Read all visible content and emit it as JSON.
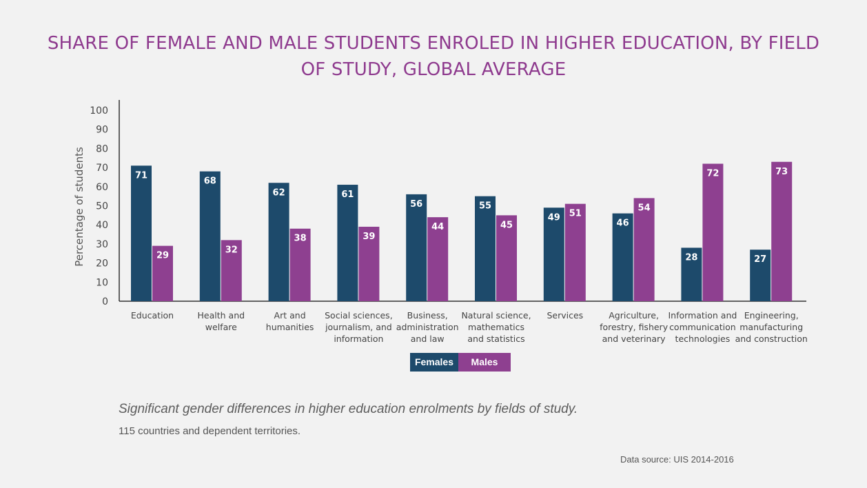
{
  "title": "SHARE OF FEMALE AND MALE STUDENTS ENROLED IN HIGHER EDUCATION, BY FIELD OF STUDY, GLOBAL AVERAGE",
  "caption": {
    "main": "Significant gender differences in higher education enrolments by fields of study.",
    "sub": "115 countries and dependent territories.",
    "source": "Data source: UIS 2014-2016"
  },
  "colors": {
    "females": "#1d4a6b",
    "males": "#8e4090",
    "title": "#8e3a8e",
    "axis": "#333333"
  },
  "chart_data": {
    "type": "bar",
    "title": "SHARE OF FEMALE AND MALE STUDENTS ENROLED IN HIGHER EDUCATION, BY FIELD OF STUDY, GLOBAL AVERAGE",
    "xlabel": "",
    "ylabel": "Percentage of students",
    "ylim": [
      0,
      100
    ],
    "yticks": [
      0,
      10,
      20,
      30,
      40,
      50,
      60,
      70,
      80,
      90,
      100
    ],
    "legend_position": "bottom-center",
    "grid": false,
    "categories": [
      [
        "Education"
      ],
      [
        "Health and",
        "welfare"
      ],
      [
        "Art and",
        "humanities"
      ],
      [
        "Social sciences,",
        "journalism, and",
        "information"
      ],
      [
        "Business,",
        "administration",
        "and law"
      ],
      [
        "Natural science,",
        "mathematics",
        "and statistics"
      ],
      [
        "Services"
      ],
      [
        "Agriculture,",
        "forestry, fishery",
        "and veterinary"
      ],
      [
        "Information and",
        "communication",
        "technologies"
      ],
      [
        "Engineering,",
        "manufacturing",
        "and construction"
      ]
    ],
    "series": [
      {
        "name": "Females",
        "values": [
          71,
          68,
          62,
          61,
          56,
          55,
          49,
          46,
          28,
          27
        ]
      },
      {
        "name": "Males",
        "values": [
          29,
          32,
          38,
          39,
          44,
          45,
          51,
          54,
          72,
          73
        ]
      }
    ]
  }
}
